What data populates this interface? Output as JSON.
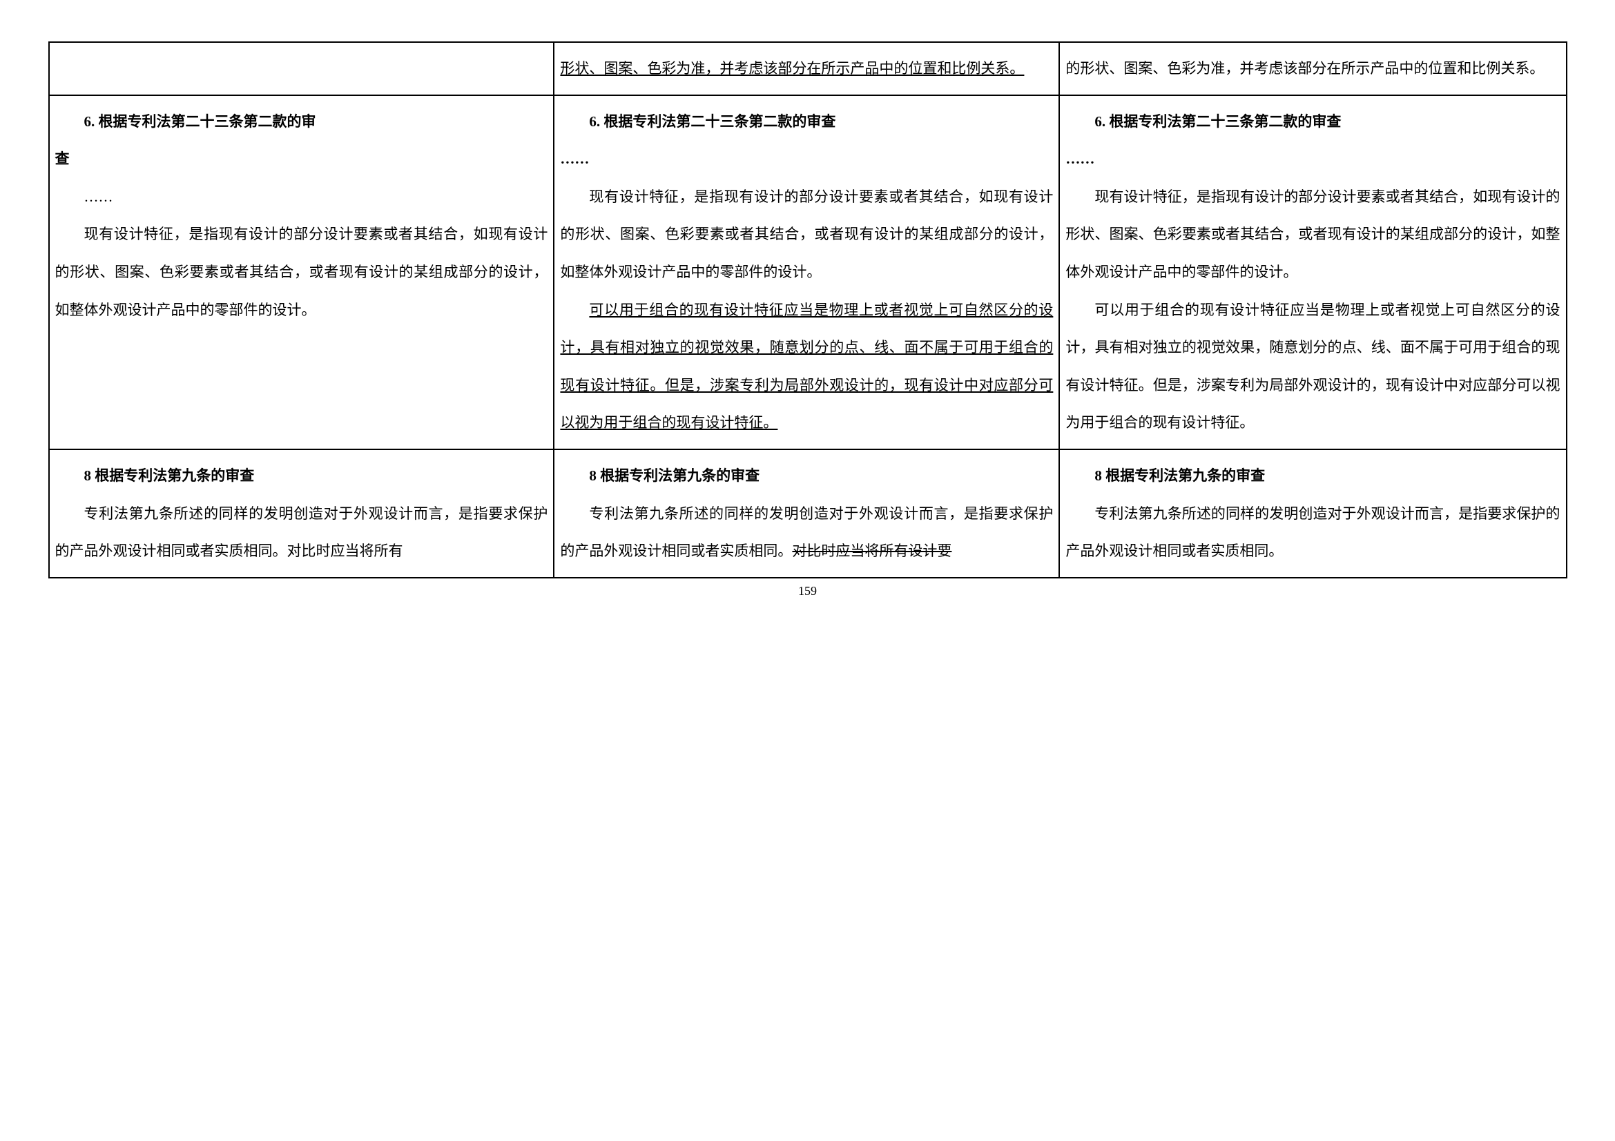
{
  "table": {
    "row1": {
      "col1": "",
      "col2": "形状、图案、色彩为准，并考虑该部分在所示产品中的位置和比例关系。",
      "col3": "的形状、图案、色彩为准，并考虑该部分在所示产品中的位置和比例关系。"
    },
    "row2": {
      "heading": "6. 根据专利法第二十三条第二款的审查",
      "col1_heading_tail": "查",
      "ellipsis": "……",
      "col1_p1": "现有设计特征，是指现有设计的部分设计要素或者其结合，如现有设计的形状、图案、色彩要素或者其结合，或者现有设计的某组成部分的设计，如整体外观设计产品中的零部件的设计。",
      "col2_p1": "现有设计特征，是指现有设计的部分设计要素或者其结合，如现有设计的形状、图案、色彩要素或者其结合，或者现有设计的某组成部分的设计，如整体外观设计产品中的零部件的设计。",
      "col2_p2": "可以用于组合的现有设计特征应当是物理上或者视觉上可自然区分的设计，具有相对独立的视觉效果，随意划分的点、线、面不属于可用于组合的现有设计特征。但是，涉案专利为局部外观设计的，现有设计中对应部分可以视为用于组合的现有设计特征。",
      "col3_p1": "现有设计特征，是指现有设计的部分设计要素或者其结合，如现有设计的形状、图案、色彩要素或者其结合，或者现有设计的某组成部分的设计，如整体外观设计产品中的零部件的设计。",
      "col3_p2": "可以用于组合的现有设计特征应当是物理上或者视觉上可自然区分的设计，具有相对独立的视觉效果，随意划分的点、线、面不属于可用于组合的现有设计特征。但是，涉案专利为局部外观设计的，现有设计中对应部分可以视为用于组合的现有设计特征。"
    },
    "row3": {
      "heading": "8  根据专利法第九条的审查",
      "col1_p1": "专利法第九条所述的同样的发明创造对于外观设计而言，是指要求保护的产品外观设计相同或者实质相同。对比时应当将所有",
      "col2_p1_a": "专利法第九条所述的同样的发明创造对于外观设计而言，是指要求保护的产品外观设计相同或者实质相同。",
      "col2_p1_b": "对比时应当将所有设计要",
      "col3_p1": "专利法第九条所述的同样的发明创造对于外观设计而言，是指要求保护的产品外观设计相同或者实质相同。"
    }
  },
  "page_number": "159",
  "styles": {
    "font_size_body": 21,
    "line_height": 2.6,
    "border_color": "#000000",
    "bg_color": "#ffffff"
  }
}
